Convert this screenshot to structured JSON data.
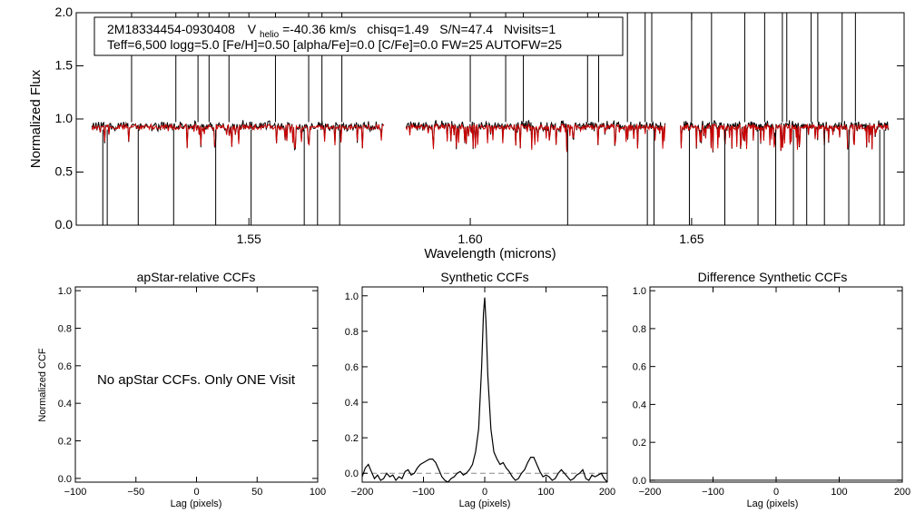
{
  "header": {
    "star_id": "2M18334454-0930408",
    "vhelio_label_main": "V",
    "vhelio_label_sub": "helio",
    "vhelio_value": "=-40.36 km/s",
    "chisq": "chisq=1.49",
    "snr": "S/N=47.4",
    "nvisits": "Nvisits=1",
    "params": "Teff=6,500 logg=5.0 [Fe/H]=0.50 [alpha/Fe]=0.0 [C/Fe]=0.0 FW=25 AUTOFW=25"
  },
  "chart_data": [
    {
      "id": "spectrum",
      "type": "line",
      "title": "",
      "xlabel": "Wavelength (microns)",
      "ylabel": "Normalized Flux",
      "xlim": [
        1.511,
        1.698
      ],
      "ylim": [
        0.0,
        2.0
      ],
      "xticks": [
        "1.55",
        "1.60",
        "1.65"
      ],
      "xtick_values": [
        1.55,
        1.6,
        1.65
      ],
      "yticks": [
        "0.0",
        "0.5",
        "1.0",
        "1.5",
        "2.0"
      ],
      "ytick_values": [
        0.0,
        0.5,
        1.0,
        1.5,
        2.0
      ],
      "chip_segments": [
        [
          1.5145,
          1.5805
        ],
        [
          1.5855,
          1.644
        ],
        [
          1.6475,
          1.6945
        ]
      ],
      "series": [
        {
          "role": "observed",
          "color": "#000000",
          "continuum": 0.96
        },
        {
          "role": "model",
          "color": "#cc0000",
          "continuum": 0.95
        }
      ],
      "spikes_up": [
        1.5235,
        1.5335,
        1.5385,
        1.541,
        1.5455,
        1.556,
        1.5635,
        1.5665,
        1.571,
        1.6,
        1.608,
        1.612,
        1.6265,
        1.629,
        1.6355,
        1.6395,
        1.641,
        1.65,
        1.6545,
        1.662,
        1.6665,
        1.6705,
        1.6715,
        1.677,
        1.6785,
        1.684,
        1.687
      ],
      "spikes_down": [
        1.517,
        1.518,
        1.525,
        1.533,
        1.5425,
        1.5505,
        1.5625,
        1.5655,
        1.5705,
        1.622,
        1.64,
        1.6415,
        1.6495,
        1.6575,
        1.665,
        1.669,
        1.673,
        1.676,
        1.68,
        1.6855,
        1.6925,
        1.6935
      ]
    },
    {
      "id": "apstar-ccf",
      "type": "line",
      "title": "apStar-relative CCFs",
      "xlabel": "Lag (pixels)",
      "ylabel": "Normalized CCF",
      "xlim": [
        -100,
        100
      ],
      "ylim": [
        -0.02,
        1.02
      ],
      "xticks": [
        "−100",
        "−50",
        "0",
        "50",
        "100"
      ],
      "xtick_values": [
        -100,
        -50,
        0,
        50,
        100
      ],
      "yticks": [
        "0.0",
        "0.2",
        "0.4",
        "0.6",
        "0.8",
        "1.0"
      ],
      "ytick_values": [
        0.0,
        0.2,
        0.4,
        0.6,
        0.8,
        1.0
      ],
      "annotation": "No apStar CCFs.  Only ONE Visit",
      "series": []
    },
    {
      "id": "synthetic-ccf",
      "type": "line",
      "title": "Synthetic CCFs",
      "xlabel": "Lag (pixels)",
      "ylabel": "",
      "xlim": [
        -200,
        200
      ],
      "ylim": [
        -0.05,
        1.05
      ],
      "xticks": [
        "−200",
        "−100",
        "0",
        "100",
        "200"
      ],
      "xtick_values": [
        -200,
        -100,
        0,
        100,
        200
      ],
      "yticks": [
        "0.0",
        "0.2",
        "0.4",
        "0.6",
        "0.8",
        "1.0"
      ],
      "ytick_values": [
        0.0,
        0.2,
        0.4,
        0.6,
        0.8,
        1.0
      ],
      "zero_line": 0.0,
      "series": [
        {
          "color": "#000000",
          "x": [
            -200,
            -195,
            -190,
            -185,
            -180,
            -175,
            -170,
            -165,
            -160,
            -155,
            -150,
            -145,
            -140,
            -135,
            -130,
            -125,
            -120,
            -115,
            -110,
            -105,
            -100,
            -95,
            -90,
            -85,
            -80,
            -75,
            -70,
            -65,
            -60,
            -55,
            -50,
            -45,
            -40,
            -35,
            -30,
            -25,
            -20,
            -15,
            -10,
            -5,
            -2,
            0,
            2,
            5,
            10,
            15,
            20,
            25,
            30,
            35,
            40,
            45,
            50,
            55,
            60,
            65,
            70,
            75,
            80,
            85,
            90,
            95,
            100,
            105,
            110,
            115,
            120,
            125,
            130,
            135,
            140,
            145,
            150,
            155,
            160,
            165,
            170,
            175,
            180,
            185,
            190,
            195,
            200
          ],
          "y": [
            -0.02,
            0.03,
            0.05,
            0.01,
            -0.03,
            -0.01,
            -0.04,
            -0.03,
            0.0,
            -0.02,
            -0.01,
            -0.04,
            -0.02,
            -0.03,
            0.01,
            0.02,
            -0.01,
            0.0,
            0.03,
            0.05,
            0.06,
            0.07,
            0.08,
            0.08,
            0.06,
            0.02,
            -0.02,
            -0.04,
            -0.05,
            -0.03,
            -0.02,
            0.0,
            0.01,
            -0.01,
            0.0,
            0.02,
            0.05,
            0.12,
            0.25,
            0.6,
            0.9,
            0.99,
            0.85,
            0.55,
            0.25,
            0.12,
            0.08,
            0.05,
            0.06,
            0.03,
            0.01,
            -0.02,
            -0.04,
            -0.03,
            0.0,
            0.02,
            0.06,
            0.09,
            0.09,
            0.05,
            0.01,
            -0.02,
            -0.01,
            -0.02,
            -0.04,
            -0.03,
            0.0,
            0.02,
            0.0,
            -0.02,
            -0.04,
            -0.03,
            -0.01,
            0.0,
            0.02,
            -0.03,
            -0.04,
            -0.01,
            -0.02,
            -0.01,
            0.0,
            -0.03,
            -0.05
          ]
        }
      ]
    },
    {
      "id": "difference-ccf",
      "type": "line",
      "title": "Difference Synthetic CCFs",
      "xlabel": "Lag (pixels)",
      "ylabel": "",
      "xlim": [
        -200,
        200
      ],
      "ylim": [
        -0.01,
        1.02
      ],
      "xticks": [
        "−200",
        "−100",
        "0",
        "100",
        "200"
      ],
      "xtick_values": [
        -200,
        -100,
        0,
        100,
        200
      ],
      "yticks": [
        "0.0",
        "0.2",
        "0.4",
        "0.6",
        "0.8",
        "1.0"
      ],
      "ytick_values": [
        0.0,
        0.2,
        0.4,
        0.6,
        0.8,
        1.0
      ],
      "series": [
        {
          "color": "#000000",
          "x": [
            -200,
            200
          ],
          "y": [
            0.0,
            0.0
          ]
        }
      ]
    }
  ]
}
